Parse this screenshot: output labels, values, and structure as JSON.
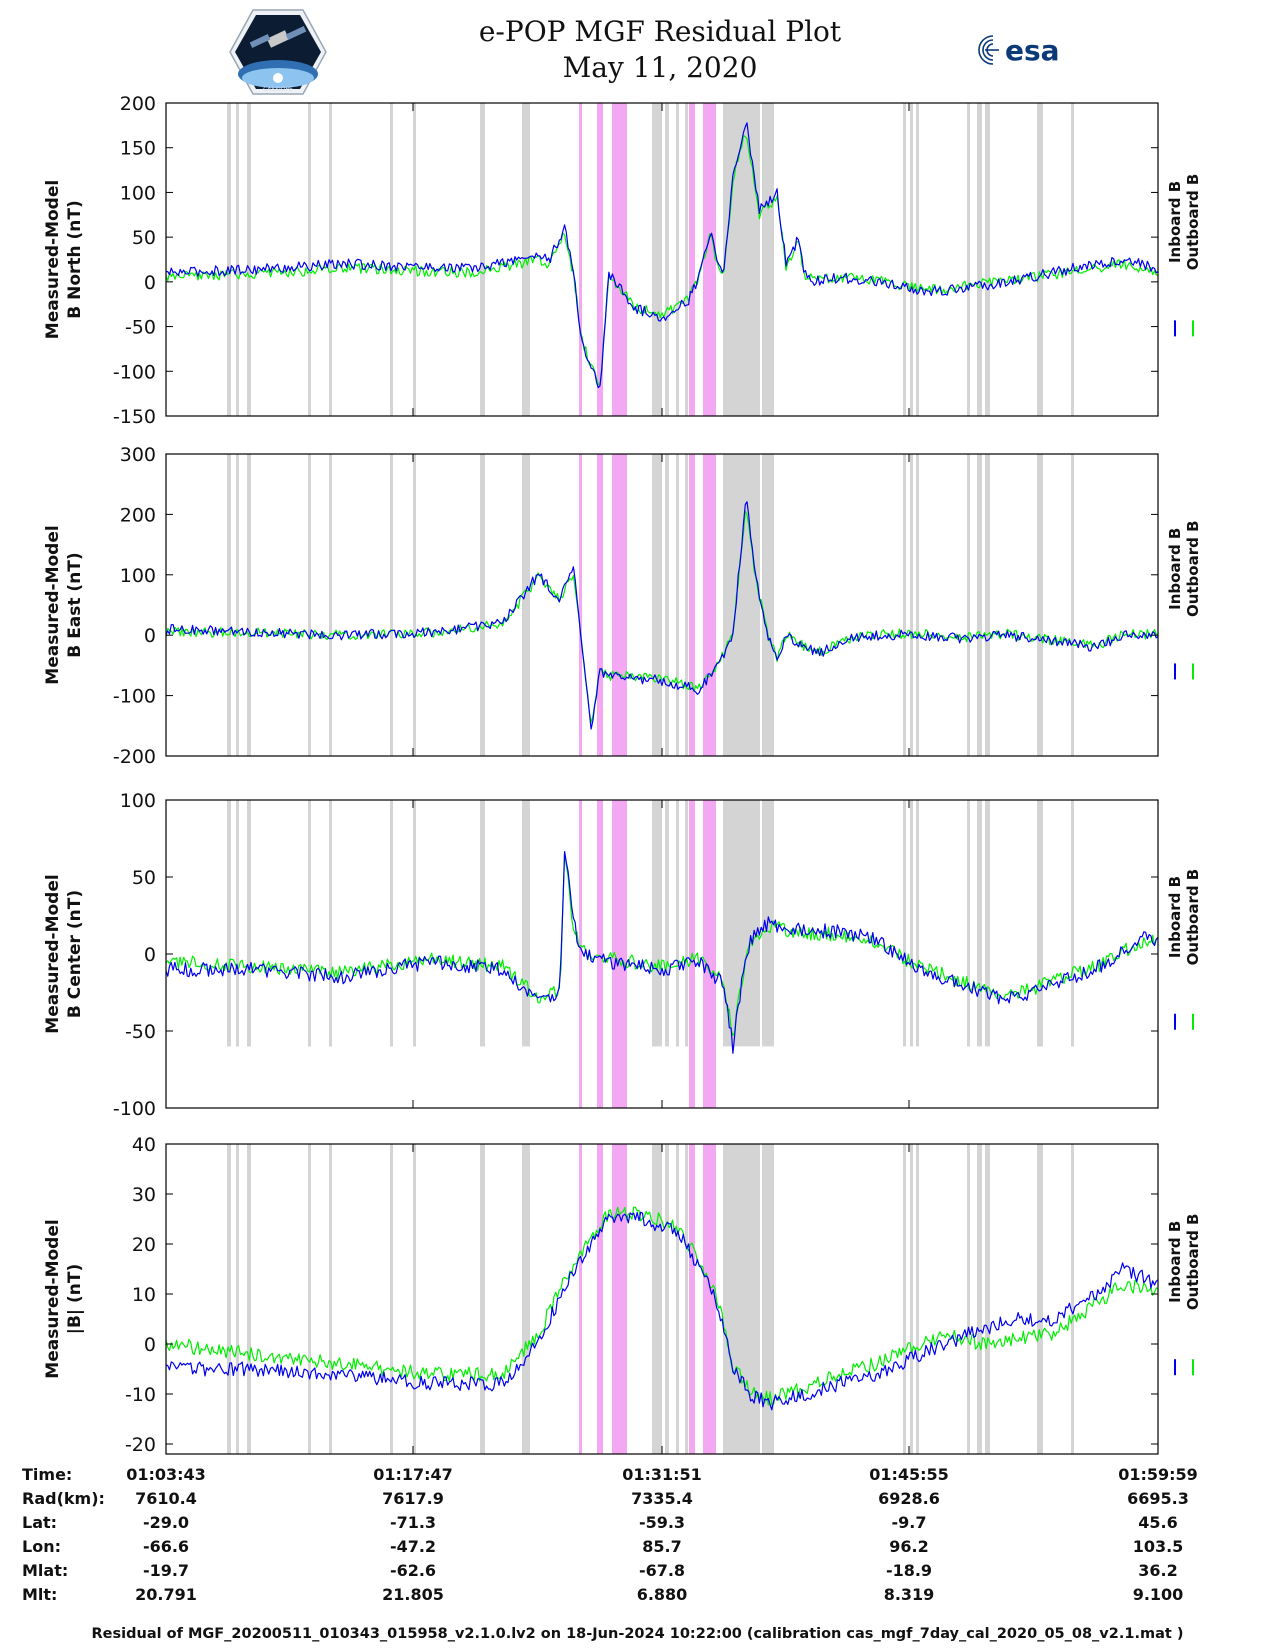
{
  "header": {
    "title_line1": "e-POP MGF Residual Plot",
    "title_line2": "May 11, 2020",
    "logo_left_text": "CASSIOPE",
    "logo_right_text": "esa"
  },
  "colors": {
    "inboard": "#0000ee",
    "outboard": "#00ee00",
    "gray_band": "#d4d4d4",
    "pink_band": "#f4a8f4"
  },
  "chart_data": [
    {
      "type": "line",
      "ylabel": [
        "Measured-Model",
        "B North (nT)"
      ],
      "ylim": [
        -150,
        200
      ],
      "yticks": [
        200,
        150,
        100,
        50,
        0,
        -50,
        -100,
        -150
      ],
      "series": [
        {
          "name": "Inboard B",
          "color": "#0000ee",
          "x": [
            0,
            120,
            200,
            350,
            420,
            433,
            450,
            460,
            470,
            490,
            500,
            530,
            560,
            590,
            600,
            615,
            620,
            630,
            640,
            655,
            670,
            690,
            700,
            715,
            720,
            730,
            760,
            800,
            850,
            880,
            950,
            1000,
            1050,
            1080,
            1120
          ],
          "y": [
            10,
            15,
            20,
            15,
            30,
            25,
            60,
            10,
            -70,
            -120,
            10,
            -30,
            -40,
            -20,
            0,
            60,
            30,
            10,
            120,
            180,
            80,
            100,
            20,
            50,
            10,
            0,
            5,
            0,
            -10,
            -10,
            0,
            10,
            20,
            25,
            15
          ]
        },
        {
          "name": "Outboard B",
          "color": "#00ee00",
          "x": [
            0,
            120,
            200,
            350,
            420,
            433,
            450,
            460,
            470,
            490,
            500,
            530,
            560,
            590,
            600,
            615,
            620,
            630,
            640,
            655,
            670,
            690,
            700,
            715,
            720,
            730,
            760,
            800,
            850,
            880,
            950,
            1000,
            1050,
            1080,
            1120
          ],
          "y": [
            5,
            10,
            15,
            10,
            25,
            20,
            55,
            8,
            -68,
            -115,
            8,
            -28,
            -38,
            -18,
            2,
            55,
            28,
            8,
            115,
            170,
            75,
            95,
            18,
            45,
            8,
            2,
            6,
            2,
            -8,
            -8,
            2,
            8,
            15,
            20,
            10
          ]
        }
      ]
    },
    {
      "type": "line",
      "ylabel": [
        "Measured-Model",
        "B East (nT)"
      ],
      "ylim": [
        -200,
        300
      ],
      "yticks": [
        300,
        200,
        100,
        0,
        -100,
        -200
      ],
      "series": [
        {
          "name": "Inboard B",
          "color": "#0000ee",
          "x": [
            0,
            100,
            200,
            300,
            380,
            420,
            445,
            460,
            470,
            480,
            490,
            500,
            520,
            560,
            600,
            620,
            640,
            655,
            665,
            680,
            690,
            700,
            720,
            740,
            760,
            800,
            850,
            900,
            950,
            1000,
            1050,
            1080,
            1120
          ],
          "y": [
            10,
            5,
            0,
            5,
            20,
            100,
            60,
            110,
            -20,
            -160,
            -60,
            -70,
            -70,
            -75,
            -90,
            -60,
            0,
            230,
            100,
            0,
            -40,
            0,
            -20,
            -30,
            -10,
            0,
            0,
            -5,
            0,
            -10,
            -20,
            0,
            0
          ]
        },
        {
          "name": "Outboard B",
          "color": "#00ee00",
          "x": [
            0,
            100,
            200,
            300,
            380,
            420,
            445,
            460,
            470,
            480,
            490,
            500,
            520,
            560,
            600,
            620,
            640,
            655,
            665,
            680,
            690,
            700,
            720,
            740,
            760,
            800,
            850,
            900,
            950,
            1000,
            1050,
            1080,
            1120
          ],
          "y": [
            5,
            4,
            0,
            4,
            18,
            95,
            58,
            105,
            -18,
            -150,
            -58,
            -68,
            -68,
            -72,
            -88,
            -58,
            2,
            220,
            95,
            2,
            -38,
            2,
            -18,
            -28,
            -8,
            2,
            2,
            -4,
            2,
            -8,
            -18,
            2,
            2
          ]
        }
      ]
    },
    {
      "type": "line",
      "ylabel": [
        "Measured-Model",
        "B Center (nT)"
      ],
      "ylim": [
        -100,
        100
      ],
      "yticks": [
        100,
        50,
        0,
        -50,
        -100
      ],
      "series": [
        {
          "name": "Inboard B",
          "color": "#0000ee",
          "x": [
            0,
            100,
            200,
            300,
            380,
            420,
            445,
            450,
            460,
            470,
            500,
            560,
            600,
            630,
            640,
            650,
            660,
            680,
            720,
            760,
            800,
            850,
            900,
            950,
            1000,
            1050,
            1100
          ],
          "y": [
            -10,
            -10,
            -15,
            -5,
            -10,
            -30,
            -25,
            70,
            20,
            0,
            -5,
            -10,
            -5,
            -20,
            -60,
            -20,
            10,
            20,
            15,
            15,
            10,
            -10,
            -20,
            -30,
            -20,
            -10,
            10
          ]
        },
        {
          "name": "Outboard B",
          "color": "#00ee00",
          "x": [
            0,
            100,
            200,
            300,
            380,
            420,
            445,
            450,
            460,
            470,
            500,
            560,
            600,
            630,
            640,
            650,
            660,
            680,
            720,
            760,
            800,
            850,
            900,
            950,
            1000,
            1050,
            1100
          ],
          "y": [
            -5,
            -8,
            -12,
            -3,
            -8,
            -28,
            -23,
            65,
            18,
            2,
            -3,
            -8,
            -3,
            -18,
            -55,
            -18,
            8,
            18,
            13,
            13,
            8,
            -8,
            -18,
            -28,
            -18,
            -8,
            8
          ]
        }
      ]
    },
    {
      "type": "line",
      "ylabel": [
        "Measured-Model",
        "|B| (nT)"
      ],
      "ylim": [
        -22,
        40
      ],
      "yticks": [
        40,
        30,
        20,
        10,
        0,
        -10,
        -20
      ],
      "series": [
        {
          "name": "Inboard B",
          "color": "#0000ee",
          "x": [
            0,
            100,
            200,
            300,
            380,
            420,
            460,
            500,
            540,
            580,
            620,
            640,
            660,
            680,
            720,
            760,
            800,
            840,
            880,
            920,
            960,
            1000,
            1050,
            1080,
            1120
          ],
          "y": [
            -5,
            -5,
            -6,
            -8,
            -8,
            0,
            15,
            25,
            25,
            22,
            10,
            -5,
            -10,
            -12,
            -10,
            -8,
            -6,
            -3,
            0,
            3,
            5,
            5,
            10,
            15,
            12
          ]
        },
        {
          "name": "Outboard B",
          "color": "#00ee00",
          "x": [
            0,
            100,
            200,
            300,
            380,
            420,
            460,
            500,
            540,
            580,
            620,
            640,
            660,
            680,
            720,
            760,
            800,
            840,
            880,
            920,
            960,
            1000,
            1050,
            1080,
            1120
          ],
          "y": [
            0,
            -2,
            -4,
            -6,
            -6,
            2,
            16,
            26,
            26,
            23,
            11,
            -4,
            -9,
            -11,
            -9,
            -6,
            -4,
            -1,
            2,
            0,
            1,
            2,
            8,
            12,
            10
          ]
        }
      ]
    }
  ],
  "legend": {
    "inboard_label": "Inboard B",
    "outboard_label": "Outboard B"
  },
  "footer_table": {
    "row_labels": [
      "Time:",
      "Rad(km):",
      "Lat:",
      "Lon:",
      "Mlat:",
      "Mlt:"
    ],
    "columns": [
      [
        "01:03:43",
        "7610.4",
        "-29.0",
        "-66.6",
        "-19.7",
        "20.791"
      ],
      [
        "01:17:47",
        "7617.9",
        "-71.3",
        "-47.2",
        "-62.6",
        "21.805"
      ],
      [
        "01:31:51",
        "7335.4",
        "-59.3",
        "85.7",
        "-67.8",
        "6.880"
      ],
      [
        "01:45:55",
        "6928.6",
        "-9.7",
        "96.2",
        "-18.9",
        "8.319"
      ],
      [
        "01:59:59",
        "6695.3",
        "45.6",
        "103.5",
        "36.2",
        "9.100"
      ]
    ]
  },
  "caption": "Residual of MGF_20200511_010343_015958_v2.1.0.lv2 on 18-Jun-2024 10:22:00 (calibration cas_mgf_7day_cal_2020_05_08_v2.1.mat )"
}
